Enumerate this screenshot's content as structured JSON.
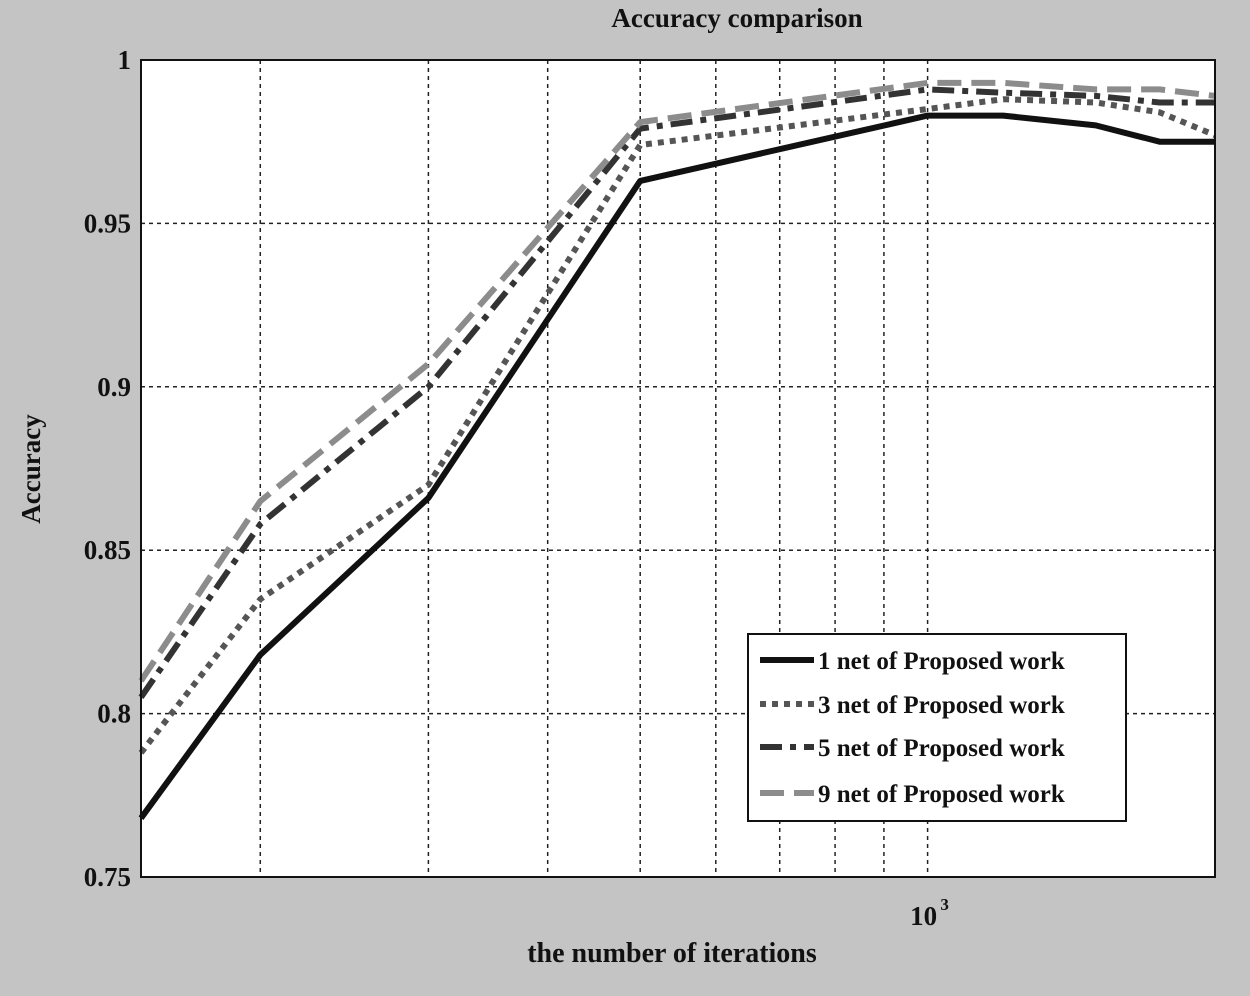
{
  "chart_data": {
    "type": "line",
    "title": "Accuracy comparison",
    "xlabel": "the number of iterations",
    "ylabel": "Accuracy",
    "x_scale": "log",
    "xlim": [
      150,
      2000
    ],
    "ylim": [
      0.75,
      1
    ],
    "x_ticks": [
      {
        "value": 1000,
        "base": "10",
        "exponent": "3"
      }
    ],
    "x_gridlines": [
      200,
      300,
      400,
      500,
      600,
      700,
      800,
      900,
      1000
    ],
    "y_ticks": [
      {
        "value": 0.75,
        "label": "0.75"
      },
      {
        "value": 0.8,
        "label": "0.8"
      },
      {
        "value": 0.85,
        "label": "0.85"
      },
      {
        "value": 0.9,
        "label": "0.9"
      },
      {
        "value": 0.95,
        "label": "0.95"
      },
      {
        "value": 1,
        "label": "1"
      }
    ],
    "grid": true,
    "legend_position": "bottom-right",
    "x": [
      150,
      200,
      300,
      500,
      1000,
      1200,
      1500,
      1750,
      2000
    ],
    "series": [
      {
        "name": "1 net of Proposed work",
        "color": "#111111",
        "style": "solid",
        "values": [
          0.768,
          0.818,
          0.866,
          0.963,
          0.983,
          0.983,
          0.98,
          0.975,
          0.975
        ]
      },
      {
        "name": "3 net of Proposed work",
        "color": "#555555",
        "style": "dotted",
        "values": [
          0.788,
          0.835,
          0.87,
          0.974,
          0.985,
          0.988,
          0.987,
          0.984,
          0.977
        ]
      },
      {
        "name": "5 net of Proposed work",
        "color": "#333333",
        "style": "dashdot",
        "values": [
          0.805,
          0.858,
          0.9,
          0.979,
          0.991,
          0.99,
          0.989,
          0.987,
          0.987
        ]
      },
      {
        "name": "9 net of Proposed work",
        "color": "#8c8c8c",
        "style": "dashed",
        "values": [
          0.81,
          0.865,
          0.907,
          0.981,
          0.993,
          0.993,
          0.991,
          0.991,
          0.989
        ]
      }
    ]
  }
}
